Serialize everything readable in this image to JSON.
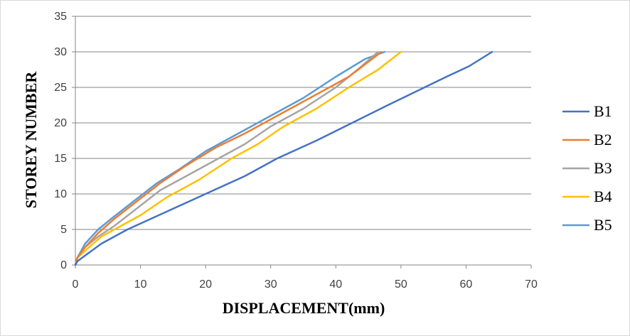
{
  "chart_data": {
    "type": "line",
    "xlabel": "DISPLACEMENT(mm)",
    "ylabel": "STOREY NUMBER",
    "xlim": [
      0,
      70
    ],
    "ylim": [
      0,
      35
    ],
    "x_ticks": [
      "0",
      "10",
      "20",
      "30",
      "40",
      "50",
      "60",
      "70"
    ],
    "y_ticks": [
      "0",
      "5",
      "10",
      "15",
      "20",
      "25",
      "30",
      "35"
    ],
    "grid": "horizontal",
    "legend_position": "right",
    "series": [
      {
        "name": "B1",
        "color": "#4472C4",
        "points": [
          [
            0,
            0
          ],
          [
            0.3,
            0.5
          ],
          [
            1,
            1
          ],
          [
            4,
            3
          ],
          [
            8,
            5
          ],
          [
            14,
            7.5
          ],
          [
            20,
            10
          ],
          [
            26,
            12.5
          ],
          [
            31,
            15
          ],
          [
            37,
            17.5
          ],
          [
            42.5,
            20
          ],
          [
            48,
            22.5
          ],
          [
            52.5,
            24.5
          ],
          [
            57,
            26.5
          ],
          [
            60.5,
            28
          ],
          [
            64,
            30
          ]
        ]
      },
      {
        "name": "B2",
        "color": "#ED7D31",
        "points": [
          [
            0,
            0
          ],
          [
            0.3,
            1
          ],
          [
            1.5,
            2.5
          ],
          [
            3.5,
            4.5
          ],
          [
            6,
            6.5
          ],
          [
            9.5,
            9
          ],
          [
            13,
            11.5
          ],
          [
            17,
            14
          ],
          [
            21.5,
            16.5
          ],
          [
            26,
            18.5
          ],
          [
            31,
            21
          ],
          [
            36,
            23.5
          ],
          [
            42,
            26.5
          ],
          [
            47,
            30
          ]
        ]
      },
      {
        "name": "B3",
        "color": "#A5A5A5",
        "points": [
          [
            0,
            0
          ],
          [
            0.3,
            1
          ],
          [
            1.5,
            2.5
          ],
          [
            3.5,
            4
          ],
          [
            6,
            5.5
          ],
          [
            9.5,
            8
          ],
          [
            13,
            10.5
          ],
          [
            17,
            12.5
          ],
          [
            21,
            14.5
          ],
          [
            26,
            17
          ],
          [
            30,
            19.5
          ],
          [
            35,
            22
          ],
          [
            40,
            25
          ],
          [
            44,
            28
          ],
          [
            46.5,
            30
          ]
        ]
      },
      {
        "name": "B4",
        "color": "#FFC000",
        "points": [
          [
            0,
            0
          ],
          [
            0.3,
            1
          ],
          [
            1.5,
            2
          ],
          [
            4,
            4
          ],
          [
            7,
            5.5
          ],
          [
            10,
            7
          ],
          [
            14,
            9.5
          ],
          [
            19,
            12
          ],
          [
            24,
            15
          ],
          [
            28,
            17
          ],
          [
            32,
            19.5
          ],
          [
            37,
            22
          ],
          [
            42,
            25
          ],
          [
            46.5,
            27.5
          ],
          [
            50,
            30
          ]
        ]
      },
      {
        "name": "B5",
        "color": "#5B9BD5",
        "points": [
          [
            0,
            0
          ],
          [
            0.3,
            1
          ],
          [
            1.5,
            3
          ],
          [
            3.5,
            5
          ],
          [
            5.5,
            6.5
          ],
          [
            9,
            9
          ],
          [
            12.5,
            11.5
          ],
          [
            16,
            13.5
          ],
          [
            20,
            16
          ],
          [
            25,
            18.5
          ],
          [
            30,
            21
          ],
          [
            35,
            23.5
          ],
          [
            40,
            26.5
          ],
          [
            44.5,
            29
          ],
          [
            47.5,
            30
          ]
        ]
      }
    ]
  }
}
